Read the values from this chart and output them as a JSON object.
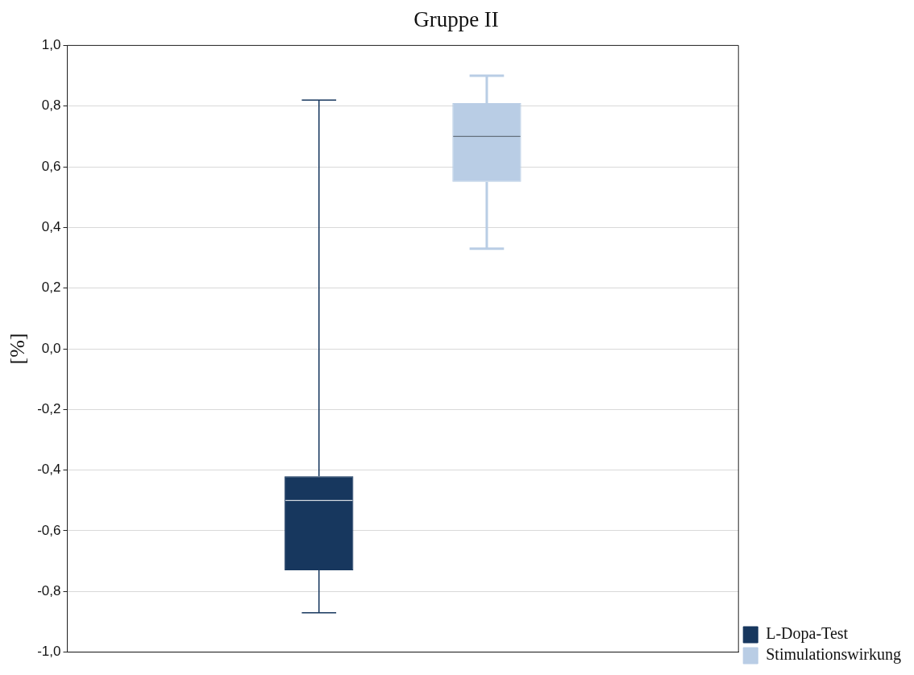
{
  "chart_data": {
    "type": "box",
    "title": "Gruppe II",
    "ylabel": "[%]",
    "categories": [
      null
    ],
    "series": [
      {
        "name": "L-Dopa-Test",
        "color": "#17375e",
        "boxes": [
          {
            "low": -0.87,
            "q1": -0.73,
            "median": -0.5,
            "q3": -0.42,
            "high": 0.82
          }
        ]
      },
      {
        "name": "Stimulationswirkung",
        "color": "#b9cde5",
        "boxes": [
          {
            "low": 0.33,
            "q1": 0.55,
            "median": 0.7,
            "q3": 0.81,
            "high": 0.9
          }
        ]
      }
    ],
    "ylim": [
      -1.0,
      1.0
    ],
    "yticks": [
      {
        "value": -1.0,
        "label": "-1,0"
      },
      {
        "value": -0.8,
        "label": "-0,8"
      },
      {
        "value": -0.6,
        "label": "-0,6"
      },
      {
        "value": -0.4,
        "label": "-0,4"
      },
      {
        "value": -0.2,
        "label": "-0,2"
      },
      {
        "value": 0,
        "label": "0,0"
      },
      {
        "value": 0.2,
        "label": "0,2"
      },
      {
        "value": 0.4,
        "label": "0,4"
      },
      {
        "value": 0.6,
        "label": "0,6"
      },
      {
        "value": 0.8,
        "label": "0,8"
      },
      {
        "value": 1.0,
        "label": "1,0"
      }
    ],
    "grid": "y",
    "legend": "bottom right"
  }
}
